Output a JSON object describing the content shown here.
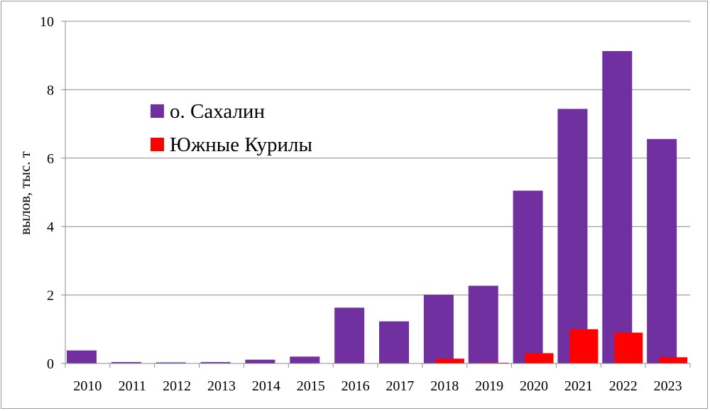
{
  "chart_data": {
    "type": "bar",
    "title": "",
    "xlabel": "",
    "ylabel": "вылов, тыс. т",
    "ylim": [
      0,
      10
    ],
    "yticks": [
      0,
      2,
      4,
      6,
      8,
      10
    ],
    "grid": true,
    "legend": "upper-left",
    "categories": [
      "2010",
      "2011",
      "2012",
      "2013",
      "2014",
      "2015",
      "2016",
      "2017",
      "2018",
      "2019",
      "2020",
      "2021",
      "2022",
      "2023"
    ],
    "series": [
      {
        "name": "о. Сахалин",
        "color": "#7030a0",
        "values": [
          0.38,
          0.04,
          0.03,
          0.04,
          0.11,
          0.2,
          1.63,
          1.23,
          2.01,
          2.27,
          5.05,
          7.44,
          9.13,
          6.56
        ]
      },
      {
        "name": "Южные Курилы",
        "color": "#ff0000",
        "values": [
          0,
          0,
          0,
          0,
          0,
          0,
          0,
          0,
          0.14,
          0.02,
          0.3,
          1.0,
          0.9,
          0.18
        ]
      }
    ]
  }
}
